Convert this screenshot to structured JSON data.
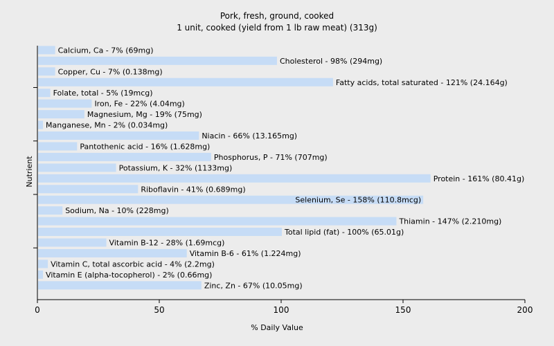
{
  "chart_data": {
    "type": "bar",
    "orientation": "horizontal",
    "title": "Pork, fresh, ground, cooked",
    "subtitle": "1 unit, cooked (yield from 1 lb raw meat) (313g)",
    "xlabel": "% Daily Value",
    "ylabel": "Nutrient",
    "xlim": [
      0,
      200
    ],
    "xticks": [
      0,
      50,
      100,
      150,
      200
    ],
    "grid": false,
    "bar_color": "#c6dcf6",
    "categories": [
      "Calcium, Ca",
      "Cholesterol",
      "Copper, Cu",
      "Fatty acids, total saturated",
      "Folate, total",
      "Iron, Fe",
      "Magnesium, Mg",
      "Manganese, Mn",
      "Niacin",
      "Pantothenic acid",
      "Phosphorus, P",
      "Potassium, K",
      "Protein",
      "Riboflavin",
      "Selenium, Se",
      "Sodium, Na",
      "Thiamin",
      "Total lipid (fat)",
      "Vitamin B-12",
      "Vitamin B-6",
      "Vitamin C, total ascorbic acid",
      "Vitamin E (alpha-tocopherol)",
      "Zinc, Zn"
    ],
    "values": [
      7,
      98,
      7,
      121,
      5,
      22,
      19,
      2,
      66,
      16,
      71,
      32,
      161,
      41,
      158,
      10,
      147,
      100,
      28,
      61,
      4,
      2,
      67
    ],
    "data_labels": [
      "Calcium, Ca - 7% (69mg)",
      "Cholesterol - 98% (294mg)",
      "Copper, Cu - 7% (0.138mg)",
      "Fatty acids, total saturated - 121% (24.164g)",
      "Folate, total - 5% (19mcg)",
      "Iron, Fe - 22% (4.04mg)",
      "Magnesium, Mg - 19% (75mg)",
      "Manganese, Mn - 2% (0.034mg)",
      "Niacin - 66% (13.165mg)",
      "Pantothenic acid - 16% (1.628mg)",
      "Phosphorus, P - 71% (707mg)",
      "Potassium, K - 32% (1133mg)",
      "Protein - 161% (80.41g)",
      "Riboflavin - 41% (0.689mg)",
      "Selenium, Se - 158% (110.8mcg)",
      "Sodium, Na - 10% (228mg)",
      "Thiamin - 147% (2.210mg)",
      "Total lipid (fat) - 100% (65.01g)",
      "Vitamin B-12 - 28% (1.69mcg)",
      "Vitamin B-6 - 61% (1.224mg)",
      "Vitamin C, total ascorbic acid - 4% (2.2mg)",
      "Vitamin E (alpha-tocopherol) - 2% (0.66mg)",
      "Zinc, Zn - 67% (10.05mg)"
    ]
  }
}
